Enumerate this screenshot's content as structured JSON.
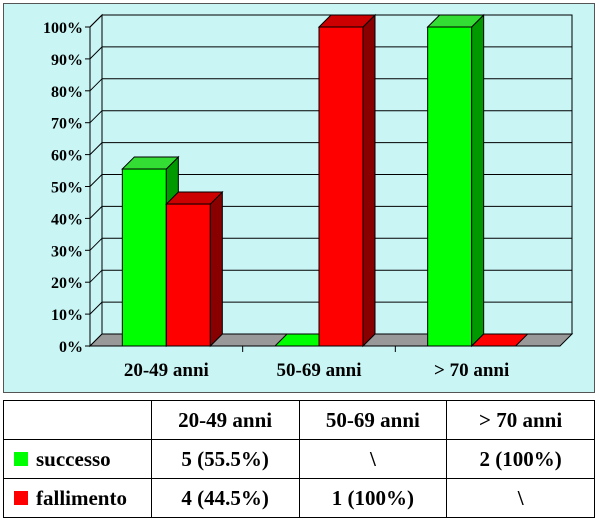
{
  "chart_data": {
    "type": "bar",
    "categories": [
      "20-49 anni",
      "50-69 anni",
      "> 70 anni"
    ],
    "series": [
      {
        "name": "successo",
        "color": "#00ff00",
        "side": "#009900",
        "top": "#33dd33",
        "values": [
          55.5,
          0,
          100
        ]
      },
      {
        "name": "fallimento",
        "color": "#ff0000",
        "side": "#880000",
        "top": "#cc0000",
        "values": [
          44.5,
          100,
          0
        ]
      }
    ],
    "ylim": [
      0,
      100
    ],
    "yticks": [
      "0%",
      "10%",
      "20%",
      "30%",
      "40%",
      "50%",
      "60%",
      "70%",
      "80%",
      "90%",
      "100%"
    ],
    "grid": true,
    "legend": "table"
  },
  "table": {
    "columns": [
      "",
      "20-49 anni",
      "50-69 anni",
      "> 70 anni"
    ],
    "rows": [
      {
        "label": "successo",
        "color": "#00ff00",
        "cells": [
          "5 (55.5%)",
          "\\",
          "2 (100%)"
        ]
      },
      {
        "label": "fallimento",
        "color": "#ff0000",
        "cells": [
          "4 (44.5%)",
          "1 (100%)",
          "\\"
        ]
      }
    ]
  }
}
